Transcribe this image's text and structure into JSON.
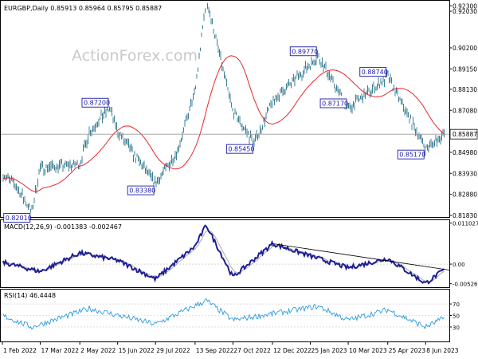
{
  "chart_data": [
    {
      "type": "candlestick",
      "title": "EURGBP,Daily  0.85913 0.85964 0.85795 0.85887",
      "watermark": "ActionForex.com",
      "y_ticks": [
        "0.92300",
        "0.92030",
        "0.90200",
        "0.89150",
        "0.88130",
        "0.87080",
        "0.85887",
        "0.84980",
        "0.83930",
        "0.82880",
        "0.81830"
      ],
      "ylim": [
        0.8175,
        0.9255
      ],
      "current_price": 0.85887,
      "moving_average_color": "#e8262c",
      "price_color": "#3c7f96",
      "label_color": "#1a1aa8",
      "approx_close_path": [
        {
          "date": "1 Feb 2022",
          "close": 0.839
        },
        {
          "date": "17 Feb 2022",
          "close": 0.833
        },
        {
          "date": "7 Mar 2022",
          "close": 0.8201
        },
        {
          "date": "17 Mar 2022",
          "close": 0.842
        },
        {
          "date": "2 May 2022",
          "close": 0.844
        },
        {
          "date": "13 May 2022",
          "close": 0.86
        },
        {
          "date": "6 Jun 2022",
          "close": 0.872
        },
        {
          "date": "15 Jun 2022",
          "close": 0.86
        },
        {
          "date": "29 Jul 2022",
          "close": 0.8338
        },
        {
          "date": "23 Aug 2022",
          "close": 0.85
        },
        {
          "date": "13 Sep 2022",
          "close": 0.88
        },
        {
          "date": "26 Sep 2022",
          "close": 0.9267
        },
        {
          "date": "27 Oct 2022",
          "close": 0.87
        },
        {
          "date": "21 Nov 2022",
          "close": 0.8545
        },
        {
          "date": "12 Dec 2022",
          "close": 0.875
        },
        {
          "date": "3 Feb 2023",
          "close": 0.8977
        },
        {
          "date": "10 Mar 2023",
          "close": 0.8717
        },
        {
          "date": "25 Apr 2023",
          "close": 0.8874
        },
        {
          "date": "8 Jun 2023",
          "close": 0.8517
        },
        {
          "date": "30 Jun 2023",
          "close": 0.8589
        }
      ],
      "annotations": [
        {
          "date": "26 Sep 2022",
          "value": 0.9267,
          "label": "0.92670"
        },
        {
          "date": "3 Feb 2023",
          "value": 0.8977,
          "label": "0.89770"
        },
        {
          "date": "25 Apr 2023",
          "value": 0.8874,
          "label": "0.88740"
        },
        {
          "date": "6 Jun 2022",
          "value": 0.872,
          "label": "0.87200"
        },
        {
          "date": "10 Mar 2023",
          "value": 0.8717,
          "label": "0.87170"
        },
        {
          "date": "21 Nov 2022",
          "value": 0.8545,
          "label": "0.85450"
        },
        {
          "date": "8 Jun 2023",
          "value": 0.8517,
          "label": "0.85170"
        },
        {
          "date": "29 Jul 2022",
          "value": 0.8338,
          "label": "0.83380"
        },
        {
          "date": "7 Mar 2022",
          "value": 0.8201,
          "label": "0.82010"
        }
      ]
    },
    {
      "type": "line",
      "title": "MACD(12,26,9) -0.001383 -0.002467",
      "y_ticks": [
        "0.011027",
        "0.00",
        "-0.005267"
      ],
      "ylim": [
        -0.0062,
        0.0118
      ],
      "macd_color": "#1e1e96",
      "signal_color": "#a8a8a8",
      "trendline_color": "#000000",
      "approx_macd_path": [
        {
          "date": "1 Feb 2022",
          "value": 0.0005
        },
        {
          "date": "17 Mar 2022",
          "value": -0.002
        },
        {
          "date": "2 May 2022",
          "value": 0.003
        },
        {
          "date": "15 Jun 2022",
          "value": 0.001
        },
        {
          "date": "29 Jul 2022",
          "value": -0.004
        },
        {
          "date": "13 Sep 2022",
          "value": 0.0048
        },
        {
          "date": "26 Sep 2022",
          "value": 0.0105
        },
        {
          "date": "27 Oct 2022",
          "value": -0.0035
        },
        {
          "date": "12 Dec 2022",
          "value": 0.0055
        },
        {
          "date": "25 Jan 2023",
          "value": 0.0022
        },
        {
          "date": "10 Mar 2023",
          "value": -0.001
        },
        {
          "date": "25 Apr 2023",
          "value": 0.0015
        },
        {
          "date": "8 Jun 2023",
          "value": -0.0052
        },
        {
          "date": "30 Jun 2023",
          "value": -0.0014
        }
      ]
    },
    {
      "type": "line",
      "title": "RSI(14) 46.4448",
      "y_ticks": [
        "70",
        "50",
        "30"
      ],
      "ylim": [
        5,
        95
      ],
      "rsi_color": "#2b9be0",
      "approx_rsi_path": [
        {
          "date": "1 Feb 2022",
          "value": 50
        },
        {
          "date": "7 Mar 2022",
          "value": 30
        },
        {
          "date": "13 May 2022",
          "value": 62
        },
        {
          "date": "29 Jul 2022",
          "value": 35
        },
        {
          "date": "26 Sep 2022",
          "value": 76
        },
        {
          "date": "27 Oct 2022",
          "value": 42
        },
        {
          "date": "3 Feb 2023",
          "value": 66
        },
        {
          "date": "10 Mar 2023",
          "value": 42
        },
        {
          "date": "25 Apr 2023",
          "value": 60
        },
        {
          "date": "8 Jun 2023",
          "value": 30
        },
        {
          "date": "30 Jun 2023",
          "value": 46
        }
      ]
    }
  ],
  "x_axis": {
    "labels": [
      "1 Feb 2022",
      "17 Mar 2022",
      "2 May 2022",
      "15 Jun 2022",
      "29 Jul 2022",
      "13 Sep 2022",
      "27 Oct 2022",
      "12 Dec 2022",
      "25 Jan 2023",
      "10 Mar 2023",
      "25 Apr 2023",
      "8 Jun 2023"
    ],
    "start": "1 Feb 2022",
    "end": "30 Jun 2023"
  }
}
